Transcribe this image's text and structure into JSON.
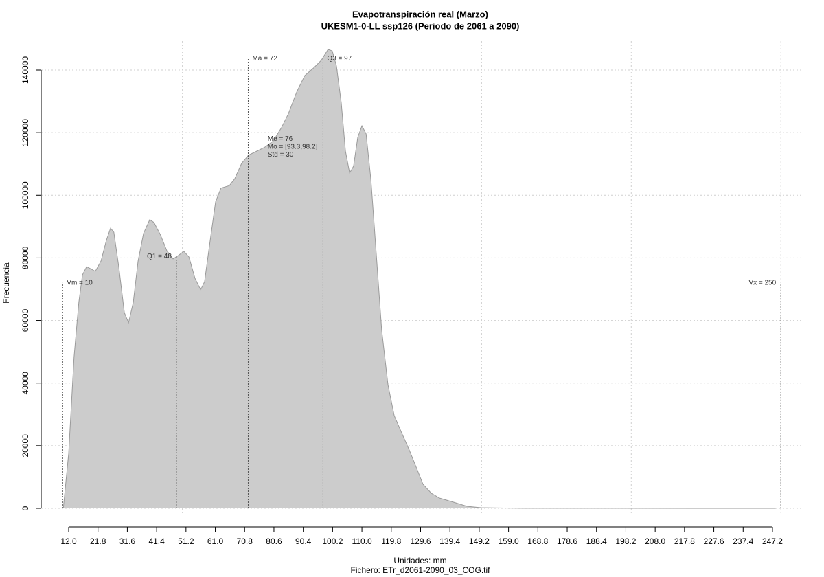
{
  "chart_data": {
    "type": "area",
    "title": "Evapotranspiración real (Marzo)",
    "subtitle": "UKESM1-0-LL ssp126 (Periodo de 2061 a 2090)",
    "xlabel": "Unidades: mm",
    "caption": "Fichero: ETr_d2061-2090_03_COG.tif",
    "ylabel": "Frecuencia",
    "color": "#cccccc",
    "line_color": "#9a9a9a",
    "xlim": [
      2.82,
      257.53
    ],
    "ylim": [
      -5925,
      149214
    ],
    "xticks": [
      {
        "value": 12,
        "label": "12.0"
      },
      21.8,
      31.6,
      41.4,
      51.2,
      {
        "value": 61,
        "label": "61.0"
      },
      70.8,
      80.6,
      90.4,
      100.2,
      {
        "value": 110,
        "label": "110.0"
      },
      119.8,
      129.6,
      139.4,
      149.2,
      {
        "value": 159,
        "label": "159.0"
      },
      168.8,
      178.6,
      188.4,
      198.2,
      {
        "value": 208,
        "label": "208.0"
      },
      217.8,
      227.6,
      237.4,
      247.2
    ],
    "xgrid": [
      50,
      100,
      150,
      200,
      250
    ],
    "yticks": [
      0,
      20000,
      40000,
      60000,
      80000,
      100000,
      120000,
      140000
    ],
    "grid": true,
    "x": [
      10.2,
      12,
      13.8,
      15.4,
      16.6,
      18,
      19.6,
      20.9,
      22.8,
      24.6,
      26,
      27.1,
      28.8,
      30.6,
      32,
      33.6,
      35.2,
      37,
      39.1,
      40.5,
      42.7,
      44.8,
      46.9,
      48.7,
      50.5,
      52.2,
      54.2,
      56.1,
      57.4,
      59.3,
      61.1,
      62.9,
      65.7,
      67.5,
      69.8,
      72.1,
      74.9,
      77.6,
      80.4,
      83.1,
      85.4,
      88.2,
      90.9,
      94.1,
      96.4,
      98.7,
      100.1,
      101.5,
      103.1,
      104.5,
      105.9,
      107.2,
      108.6,
      110,
      111.4,
      113,
      114.8,
      116.6,
      118.7,
      120.8,
      123.3,
      125.8,
      128.1,
      130.4,
      133.2,
      135.9,
      140.5,
      145.1,
      149.7,
      161.2,
      172.6,
      248.3
    ],
    "values": [
      0,
      17500,
      48300,
      65800,
      74600,
      77200,
      76400,
      75700,
      79000,
      85600,
      89500,
      88200,
      76800,
      62500,
      59300,
      65800,
      79000,
      87800,
      92200,
      91300,
      87300,
      82300,
      79700,
      80800,
      82100,
      80300,
      73500,
      69800,
      72400,
      85600,
      97900,
      102300,
      103100,
      105300,
      110200,
      112800,
      114100,
      115400,
      117400,
      121600,
      126000,
      133000,
      138200,
      140900,
      143100,
      146600,
      146100,
      141300,
      129500,
      114100,
      107100,
      109300,
      118500,
      122200,
      119600,
      104900,
      81200,
      57100,
      39500,
      29600,
      24100,
      18700,
      13200,
      7700,
      4800,
      3300,
      2000,
      660,
      220,
      50,
      20,
      0
    ],
    "annotations": [
      {
        "x": 10,
        "y": 72000,
        "label": "Vm = 10",
        "side": "right"
      },
      {
        "x": 48,
        "y": 80500,
        "label": "Q1 = 48",
        "side": "left"
      },
      {
        "x": 72,
        "y": 143700,
        "label": "Ma = 72",
        "side": "right"
      },
      {
        "x": 97,
        "y": 143700,
        "label": "Q3 = 97",
        "side": "right"
      },
      {
        "x": 250,
        "y": 72000,
        "label": "Vx = 250",
        "side": "left"
      }
    ],
    "stats_box": {
      "x": 78.5,
      "y": 118000,
      "lines": [
        "Me = 76",
        "Mo = [93.3,98.2]",
        "Std = 30"
      ]
    }
  }
}
